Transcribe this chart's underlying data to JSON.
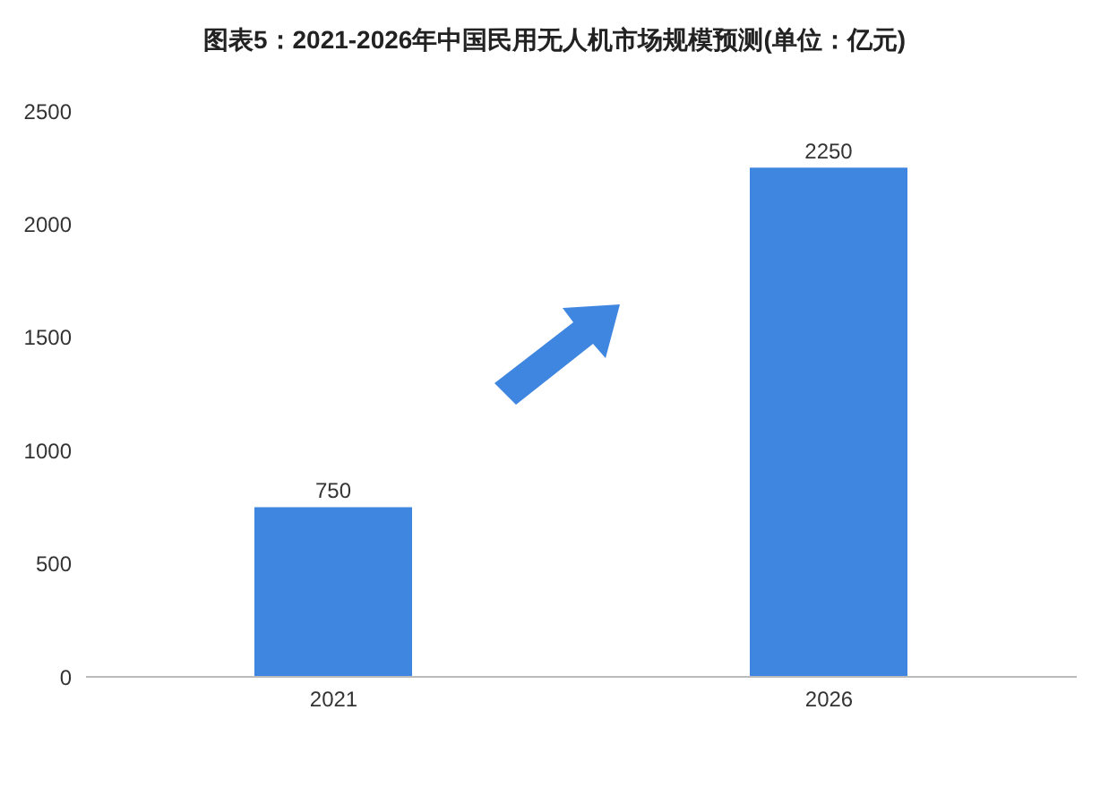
{
  "chart_data": {
    "type": "bar",
    "title": "图表5：2021-2026年中国民用无人机市场规模预测(单位：亿元)",
    "categories": [
      "2021",
      "2026"
    ],
    "values": [
      750,
      2250
    ],
    "color": "#3f86e0",
    "ylim": [
      0,
      2500
    ],
    "yticks": [
      0,
      500,
      1000,
      1500,
      2000,
      2500
    ],
    "grid": false,
    "data_labels": true
  }
}
